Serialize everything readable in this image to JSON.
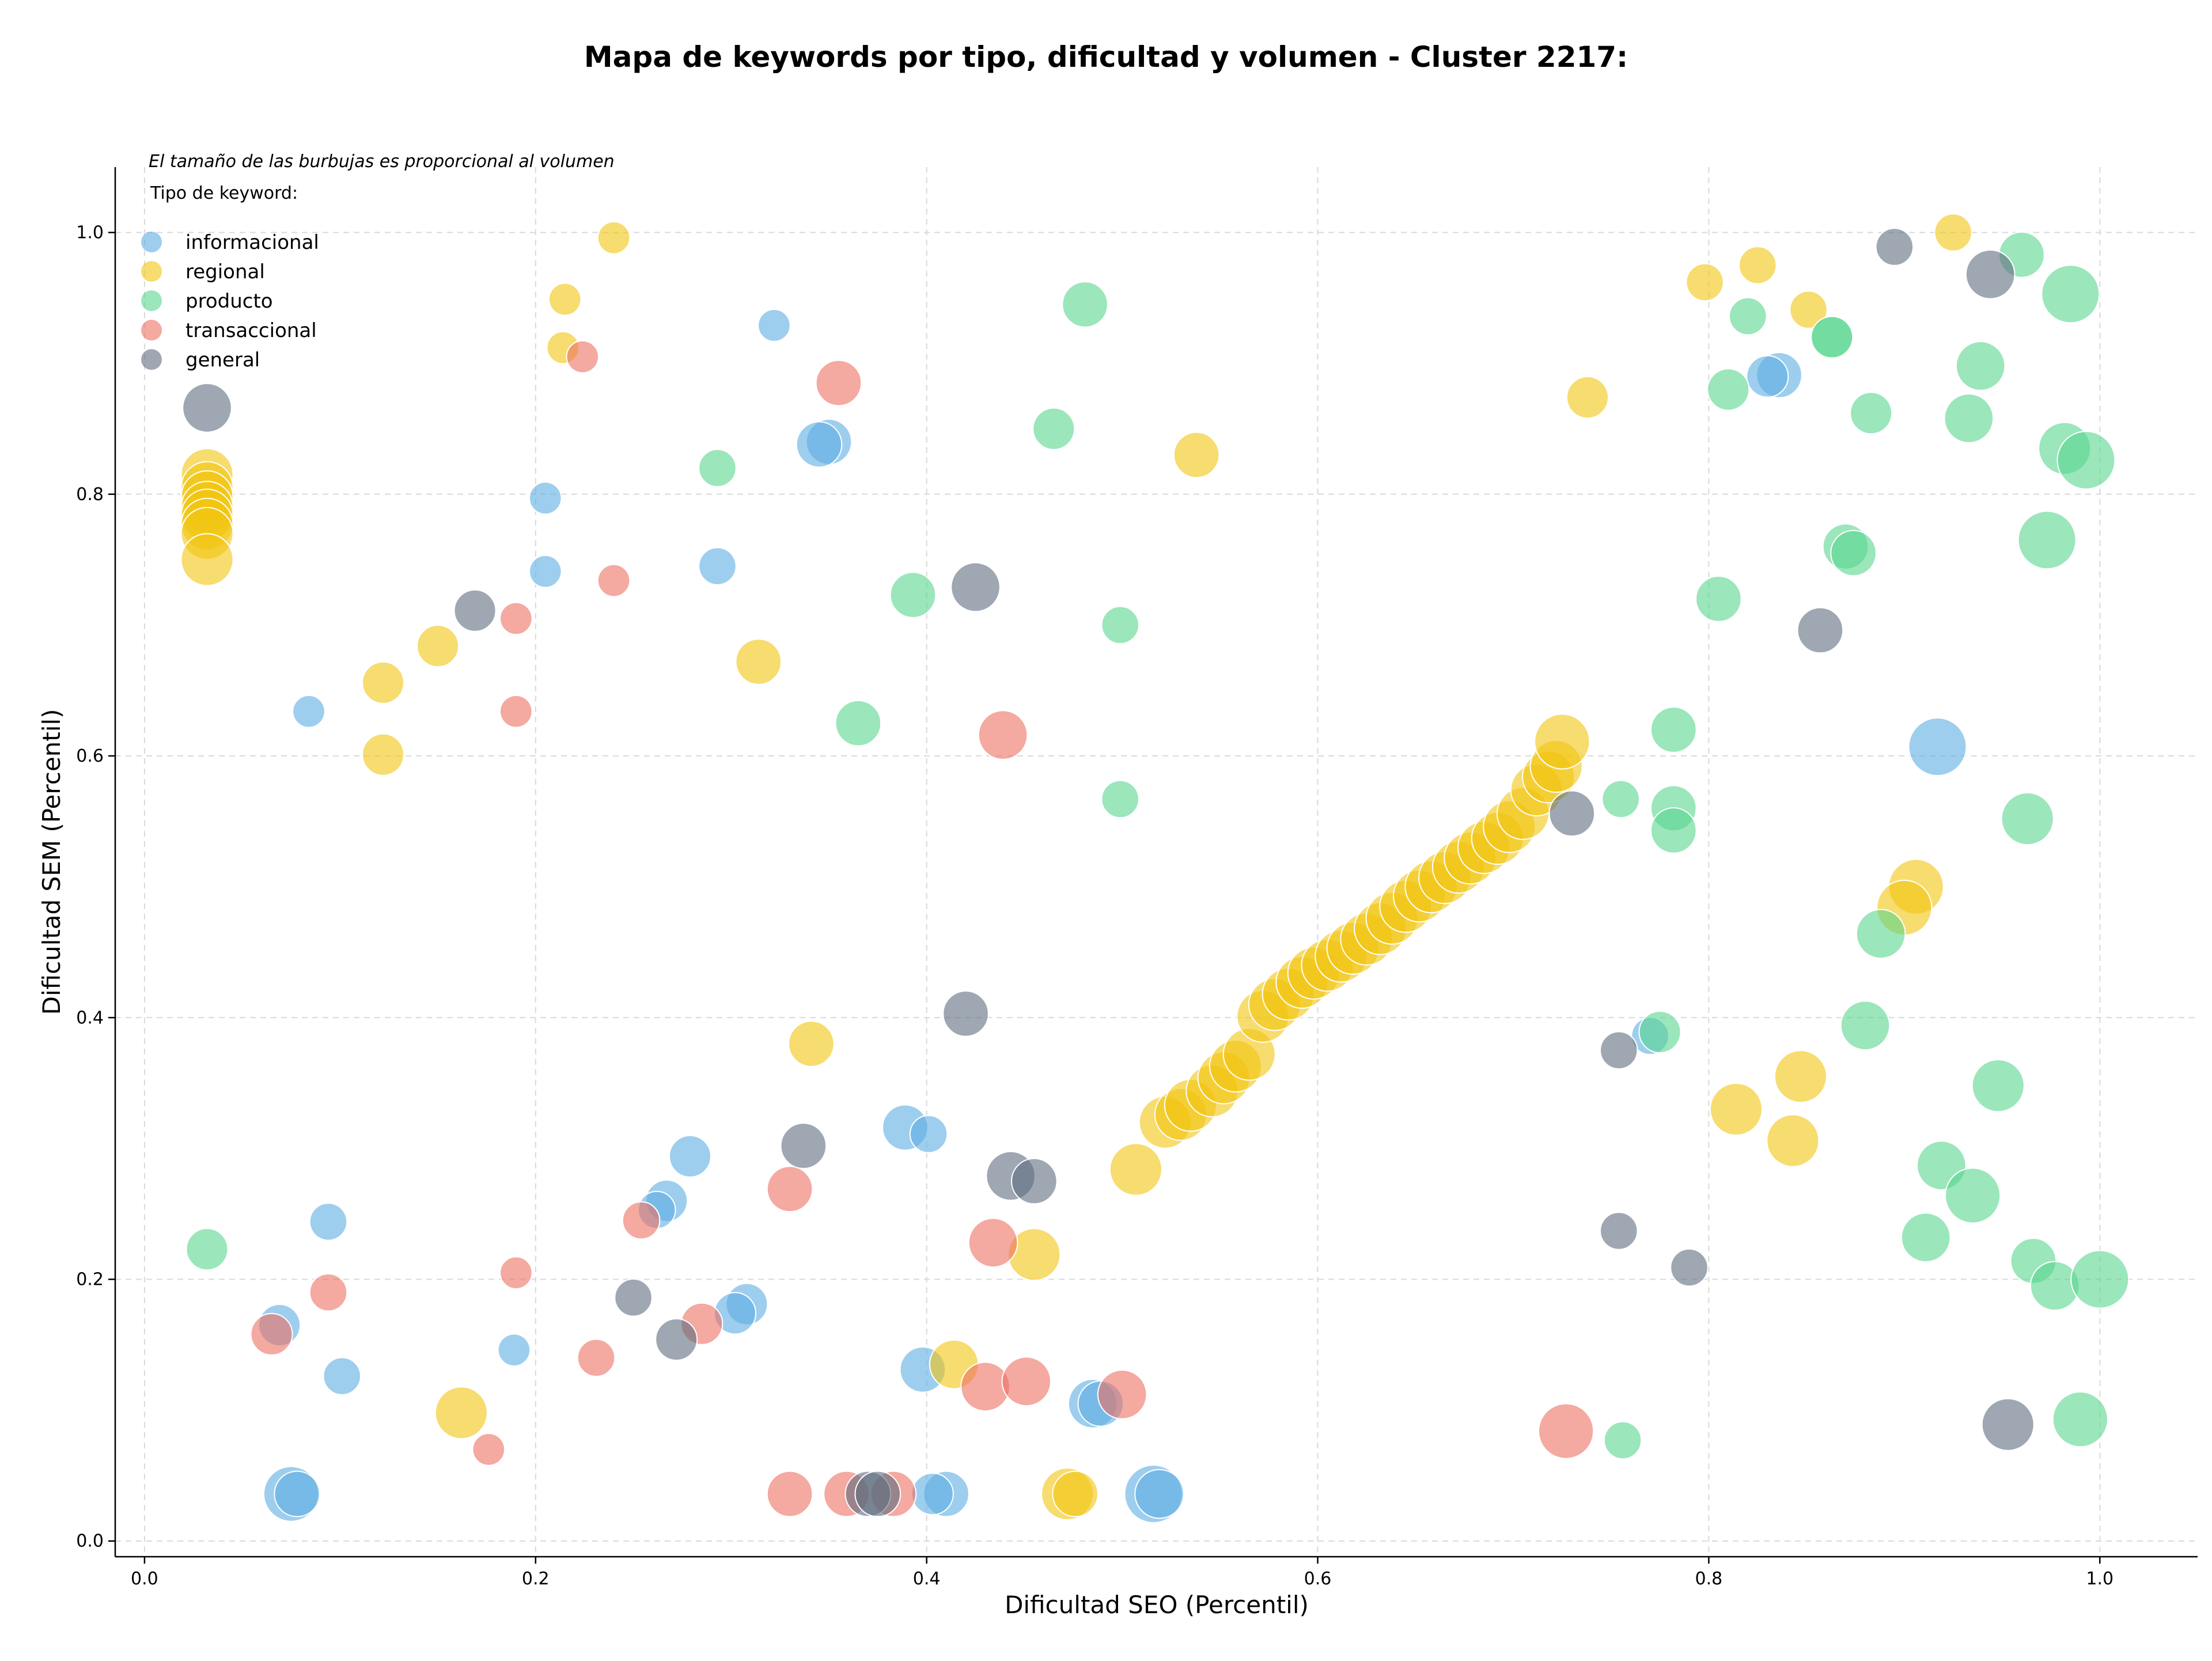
{
  "chart_data": {
    "type": "scatter",
    "title": "Mapa de keywords por tipo, dificultad y volumen - Cluster 2217:",
    "xlabel": "Dificultad SEO (Percentil)",
    "ylabel": "Dificultad SEM (Percentil)",
    "annotation": "El tamaño de las burbujas es proporcional al volumen",
    "legend_title": "Tipo de keyword:",
    "legend_position": "top-left",
    "grid": true,
    "xlim": [
      -0.015,
      1.05
    ],
    "ylim": [
      -0.012,
      1.05
    ],
    "xticks": [
      "0.0",
      "0.2",
      "0.4",
      "0.6",
      "0.8",
      "1.0"
    ],
    "yticks": [
      "0.0",
      "0.2",
      "0.4",
      "0.6",
      "0.8",
      "1.0"
    ],
    "size_unit": "relative volume",
    "series": [
      {
        "name": "informacional",
        "color": "#5dade2",
        "points": [
          [
            0.205,
            0.797,
            2
          ],
          [
            0.205,
            0.741,
            2
          ],
          [
            0.084,
            0.634,
            2
          ],
          [
            0.322,
            0.929,
            2
          ],
          [
            0.293,
            0.745,
            3
          ],
          [
            0.35,
            0.84,
            5
          ],
          [
            0.345,
            0.838,
            5
          ],
          [
            0.094,
            0.244,
            3
          ],
          [
            0.069,
            0.165,
            4
          ],
          [
            0.101,
            0.126,
            3
          ],
          [
            0.189,
            0.146,
            2
          ],
          [
            0.267,
            0.26,
            4
          ],
          [
            0.262,
            0.253,
            3
          ],
          [
            0.279,
            0.294,
            4
          ],
          [
            0.308,
            0.181,
            4
          ],
          [
            0.302,
            0.174,
            4
          ],
          [
            0.389,
            0.316,
            5
          ],
          [
            0.401,
            0.311,
            3
          ],
          [
            0.398,
            0.131,
            5
          ],
          [
            0.41,
            0.036,
            5
          ],
          [
            0.403,
            0.036,
            4
          ],
          [
            0.075,
            0.036,
            8
          ],
          [
            0.078,
            0.036,
            5
          ],
          [
            0.485,
            0.105,
            6
          ],
          [
            0.489,
            0.105,
            5
          ],
          [
            0.516,
            0.036,
            9
          ],
          [
            0.519,
            0.036,
            6
          ],
          [
            0.836,
            0.891,
            5
          ],
          [
            0.83,
            0.89,
            4
          ],
          [
            0.917,
            0.607,
            9
          ],
          [
            0.77,
            0.386,
            3
          ]
        ]
      },
      {
        "name": "regional",
        "color": "#f1c40f",
        "points": [
          [
            0.032,
            0.815,
            7
          ],
          [
            0.032,
            0.805,
            7
          ],
          [
            0.032,
            0.798,
            7
          ],
          [
            0.032,
            0.79,
            7
          ],
          [
            0.032,
            0.784,
            7
          ],
          [
            0.032,
            0.777,
            7
          ],
          [
            0.032,
            0.77,
            7
          ],
          [
            0.032,
            0.75,
            7
          ],
          [
            0.24,
            0.996,
            2
          ],
          [
            0.215,
            0.949,
            2
          ],
          [
            0.214,
            0.912,
            2
          ],
          [
            0.122,
            0.656,
            4
          ],
          [
            0.15,
            0.684,
            4
          ],
          [
            0.122,
            0.601,
            4
          ],
          [
            0.314,
            0.672,
            5
          ],
          [
            0.341,
            0.38,
            5
          ],
          [
            0.162,
            0.098,
            7
          ],
          [
            0.414,
            0.135,
            6
          ],
          [
            0.455,
            0.219,
            7
          ],
          [
            0.472,
            0.036,
            7
          ],
          [
            0.476,
            0.036,
            5
          ],
          [
            0.538,
            0.83,
            5
          ],
          [
            0.738,
            0.874,
            4
          ],
          [
            0.798,
            0.962,
            3
          ],
          [
            0.825,
            0.975,
            3
          ],
          [
            0.851,
            0.941,
            3
          ],
          [
            0.925,
            1.0,
            3
          ],
          [
            0.814,
            0.33,
            7
          ],
          [
            0.843,
            0.306,
            7
          ],
          [
            0.847,
            0.355,
            7
          ],
          [
            0.906,
            0.5,
            8
          ],
          [
            0.9,
            0.484,
            8
          ],
          [
            0.507,
            0.284,
            7
          ],
          [
            0.522,
            0.32,
            7
          ],
          [
            0.53,
            0.326,
            7
          ],
          [
            0.535,
            0.333,
            7
          ],
          [
            0.546,
            0.344,
            7
          ],
          [
            0.552,
            0.354,
            7
          ],
          [
            0.558,
            0.363,
            7
          ],
          [
            0.565,
            0.372,
            7
          ],
          [
            0.572,
            0.401,
            7
          ],
          [
            0.578,
            0.41,
            7
          ],
          [
            0.585,
            0.418,
            7
          ],
          [
            0.592,
            0.427,
            7
          ],
          [
            0.598,
            0.434,
            7
          ],
          [
            0.605,
            0.44,
            7
          ],
          [
            0.612,
            0.447,
            7
          ],
          [
            0.618,
            0.453,
            7
          ],
          [
            0.625,
            0.46,
            7
          ],
          [
            0.632,
            0.468,
            7
          ],
          [
            0.638,
            0.476,
            7
          ],
          [
            0.645,
            0.485,
            7
          ],
          [
            0.652,
            0.493,
            7
          ],
          [
            0.658,
            0.5,
            7
          ],
          [
            0.665,
            0.507,
            7
          ],
          [
            0.672,
            0.515,
            7
          ],
          [
            0.678,
            0.522,
            7
          ],
          [
            0.685,
            0.53,
            7
          ],
          [
            0.692,
            0.537,
            7
          ],
          [
            0.698,
            0.546,
            7
          ],
          [
            0.705,
            0.556,
            7
          ],
          [
            0.712,
            0.574,
            7
          ],
          [
            0.718,
            0.584,
            7
          ],
          [
            0.722,
            0.592,
            7
          ],
          [
            0.725,
            0.611,
            8
          ]
        ]
      },
      {
        "name": "producto",
        "color": "#58d68d",
        "points": [
          [
            0.032,
            0.223,
            4
          ],
          [
            0.293,
            0.82,
            3
          ],
          [
            0.481,
            0.945,
            5
          ],
          [
            0.465,
            0.85,
            4
          ],
          [
            0.393,
            0.723,
            5
          ],
          [
            0.365,
            0.625,
            5
          ],
          [
            0.499,
            0.7,
            3
          ],
          [
            0.499,
            0.567,
            3
          ],
          [
            0.756,
            0.077,
            3
          ],
          [
            0.755,
            0.567,
            3
          ],
          [
            0.775,
            0.389,
            4
          ],
          [
            0.782,
            0.62,
            5
          ],
          [
            0.782,
            0.56,
            5
          ],
          [
            0.782,
            0.543,
            5
          ],
          [
            0.805,
            0.72,
            5
          ],
          [
            0.81,
            0.88,
            4
          ],
          [
            0.82,
            0.936,
            3
          ],
          [
            0.863,
            0.92,
            4
          ],
          [
            0.863,
            0.92,
            4
          ],
          [
            0.87,
            0.76,
            5
          ],
          [
            0.874,
            0.755,
            5
          ],
          [
            0.88,
            0.394,
            6
          ],
          [
            0.883,
            0.862,
            4
          ],
          [
            0.888,
            0.464,
            6
          ],
          [
            0.911,
            0.232,
            6
          ],
          [
            0.919,
            0.287,
            6
          ],
          [
            0.933,
            0.858,
            6
          ],
          [
            0.935,
            0.264,
            8
          ],
          [
            0.939,
            0.898,
            6
          ],
          [
            0.948,
            0.348,
            7
          ],
          [
            0.96,
            0.983,
            5
          ],
          [
            0.963,
            0.552,
            7
          ],
          [
            0.966,
            0.214,
            5
          ],
          [
            0.973,
            0.765,
            9
          ],
          [
            0.977,
            0.195,
            6
          ],
          [
            0.982,
            0.835,
            7
          ],
          [
            0.985,
            0.953,
            9
          ],
          [
            0.99,
            0.093,
            8
          ],
          [
            0.993,
            0.826,
            9
          ],
          [
            1.0,
            0.2,
            9
          ]
        ]
      },
      {
        "name": "transaccional",
        "color": "#ec7063",
        "points": [
          [
            0.224,
            0.905,
            2
          ],
          [
            0.24,
            0.734,
            2
          ],
          [
            0.19,
            0.705,
            2
          ],
          [
            0.19,
            0.634,
            2
          ],
          [
            0.355,
            0.885,
            5
          ],
          [
            0.439,
            0.616,
            6
          ],
          [
            0.094,
            0.19,
            3
          ],
          [
            0.065,
            0.158,
            4
          ],
          [
            0.176,
            0.07,
            2
          ],
          [
            0.19,
            0.205,
            2
          ],
          [
            0.231,
            0.14,
            3
          ],
          [
            0.254,
            0.245,
            3
          ],
          [
            0.285,
            0.166,
            4
          ],
          [
            0.33,
            0.269,
            5
          ],
          [
            0.33,
            0.036,
            5
          ],
          [
            0.359,
            0.036,
            5
          ],
          [
            0.383,
            0.036,
            5
          ],
          [
            0.434,
            0.228,
            6
          ],
          [
            0.43,
            0.118,
            6
          ],
          [
            0.451,
            0.122,
            6
          ],
          [
            0.5,
            0.112,
            6
          ],
          [
            0.727,
            0.084,
            8
          ]
        ]
      },
      {
        "name": "general",
        "color": "#5d6d7e",
        "points": [
          [
            0.032,
            0.866,
            6
          ],
          [
            0.169,
            0.711,
            4
          ],
          [
            0.425,
            0.729,
            6
          ],
          [
            0.42,
            0.403,
            5
          ],
          [
            0.337,
            0.302,
            5
          ],
          [
            0.25,
            0.186,
            3
          ],
          [
            0.272,
            0.154,
            4
          ],
          [
            0.443,
            0.279,
            6
          ],
          [
            0.455,
            0.275,
            5
          ],
          [
            0.37,
            0.036,
            5
          ],
          [
            0.375,
            0.036,
            5
          ],
          [
            0.73,
            0.556,
            5
          ],
          [
            0.754,
            0.375,
            3
          ],
          [
            0.754,
            0.237,
            3
          ],
          [
            0.79,
            0.209,
            3
          ],
          [
            0.857,
            0.696,
            5
          ],
          [
            0.895,
            0.989,
            3
          ],
          [
            0.944,
            0.968,
            6
          ],
          [
            0.953,
            0.089,
            7
          ]
        ]
      }
    ]
  }
}
